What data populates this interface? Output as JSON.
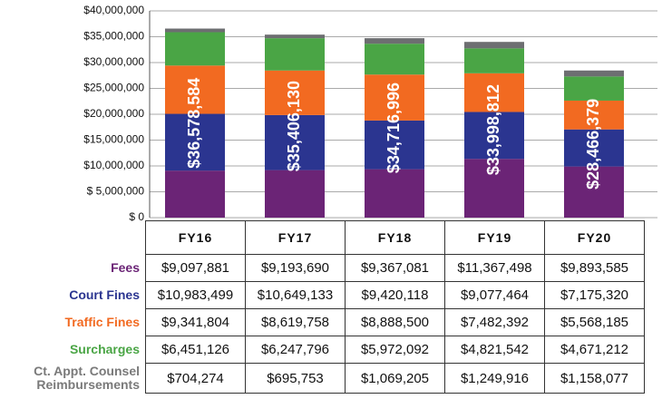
{
  "chart_data": {
    "type": "stacked-bar",
    "categories": [
      "FY16",
      "FY17",
      "FY18",
      "FY19",
      "FY20"
    ],
    "series": [
      {
        "name": "Fees",
        "color": "#6b2476",
        "values": [
          9097881,
          9193690,
          9367081,
          11367498,
          9893585
        ],
        "value_labels": [
          "$9,097,881",
          "$9,193,690",
          "$9,367,081",
          "$11,367,498",
          "$9,893,585"
        ]
      },
      {
        "name": "Court Fines",
        "color": "#2b3590",
        "values": [
          10983499,
          10649133,
          9420118,
          9077464,
          7175320
        ],
        "value_labels": [
          "$10,983,499",
          "$10,649,133",
          "$9,420,118",
          "$9,077,464",
          "$7,175,320"
        ]
      },
      {
        "name": "Traffic Fines",
        "color": "#f26a21",
        "values": [
          9341804,
          8619758,
          8888500,
          7482392,
          5568185
        ],
        "value_labels": [
          "$9,341,804",
          "$8,619,758",
          "$8,888,500",
          "$7,482,392",
          "$5,568,185"
        ]
      },
      {
        "name": "Surcharges",
        "color": "#4aa545",
        "values": [
          6451126,
          6247796,
          5972092,
          4821542,
          4671212
        ],
        "value_labels": [
          "$6,451,126",
          "$6,247,796",
          "$5,972,092",
          "$4,821,542",
          "$4,671,212"
        ]
      },
      {
        "name": "Ct. Appt. Counsel Reimbursements",
        "color": "#6d6e71",
        "values": [
          704274,
          695753,
          1069205,
          1249916,
          1158077
        ],
        "value_labels": [
          "$704,274",
          "$695,753",
          "$1,069,205",
          "$1,249,916",
          "$1,158,077"
        ]
      }
    ],
    "totals": {
      "values": [
        36578584,
        35406130,
        34716996,
        33998812,
        28466379
      ],
      "value_labels": [
        "$36,578,584",
        "$35,406,130",
        "$34,716,996",
        "$33,998,812",
        "$28,466,379"
      ]
    },
    "ylim": [
      0,
      40000000
    ],
    "yticks": [
      {
        "value": 0,
        "label": "$ 0"
      },
      {
        "value": 5000000,
        "label": "$ 5,000,000"
      },
      {
        "value": 10000000,
        "label": "$10,000,000"
      },
      {
        "value": 15000000,
        "label": "$15,000,000"
      },
      {
        "value": 20000000,
        "label": "$20,000,000"
      },
      {
        "value": 25000000,
        "label": "$25,000,000"
      },
      {
        "value": 30000000,
        "label": "$30,000,000"
      },
      {
        "value": 35000000,
        "label": "$35,000,000"
      },
      {
        "value": 40000000,
        "label": "$40,000,000"
      }
    ],
    "grid": true
  }
}
